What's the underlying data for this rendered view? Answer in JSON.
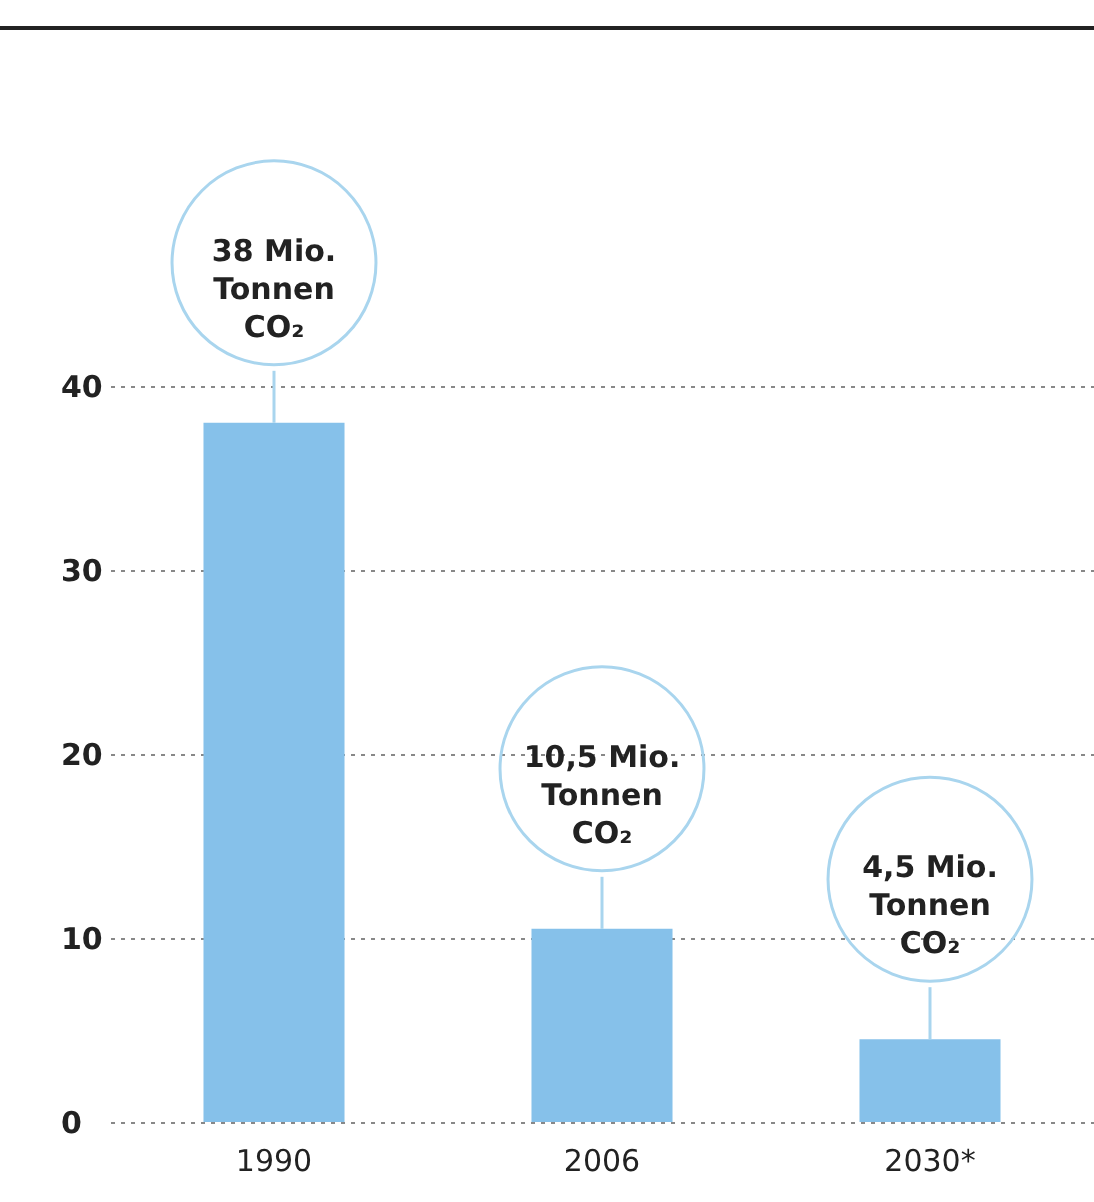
{
  "chart_data": {
    "type": "bar",
    "categories": [
      "1990",
      "2006",
      "2030*"
    ],
    "values": [
      38,
      10.5,
      4.5
    ],
    "color": "#86c1ea",
    "value_labels": [
      "38 Mio.\nTonnen\nCO₂",
      "10,5 Mio.\nTonnen\nCO₂",
      "4,5 Mio.\nTonnen\nCO₂"
    ],
    "ylim": [
      0,
      40
    ],
    "yticks": [
      0,
      10,
      20,
      30,
      40
    ],
    "grid": "y"
  }
}
